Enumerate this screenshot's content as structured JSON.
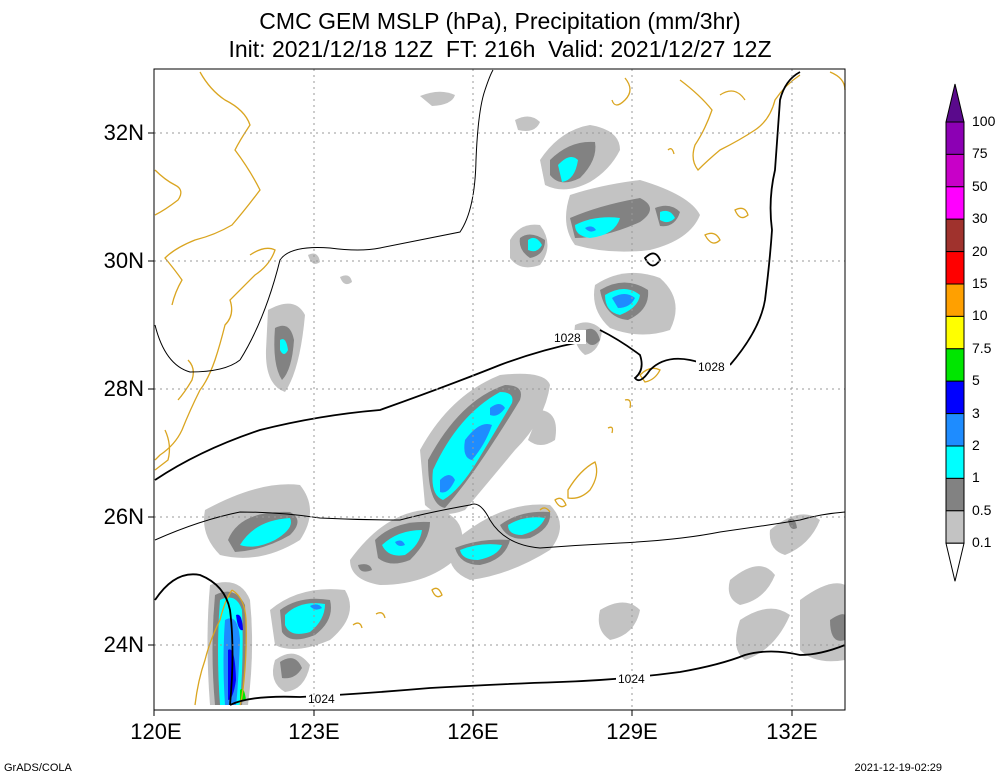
{
  "title": {
    "line1": "CMC GEM MSLP (hPa), Precipitation (mm/3hr)",
    "line2": "Init: 2021/12/18 12Z  FT: 216h  Valid: 2021/12/27 12Z"
  },
  "axes": {
    "lat_labels": [
      "32N",
      "30N",
      "28N",
      "26N",
      "24N"
    ],
    "lon_labels": [
      "120E",
      "123E",
      "126E",
      "129E",
      "132E"
    ]
  },
  "isobar_labels": [
    "1028",
    "1028",
    "1024",
    "1024"
  ],
  "colorbar": {
    "labels": [
      "100",
      "75",
      "50",
      "30",
      "20",
      "15",
      "10",
      "7.5",
      "5",
      "3",
      "2",
      "1",
      "0.5",
      "0.1"
    ],
    "colors": [
      "#5a0a8c",
      "#8c00b4",
      "#c800c8",
      "#ff00ff",
      "#a0322d",
      "#ff0000",
      "#ffa000",
      "#ffff00",
      "#00e600",
      "#0000ff",
      "#1e8cff",
      "#00ffff",
      "#828282",
      "#c3c3c3"
    ]
  },
  "footer": {
    "left": "GrADS/COLA",
    "right": "2021-12-19-02:29"
  }
}
